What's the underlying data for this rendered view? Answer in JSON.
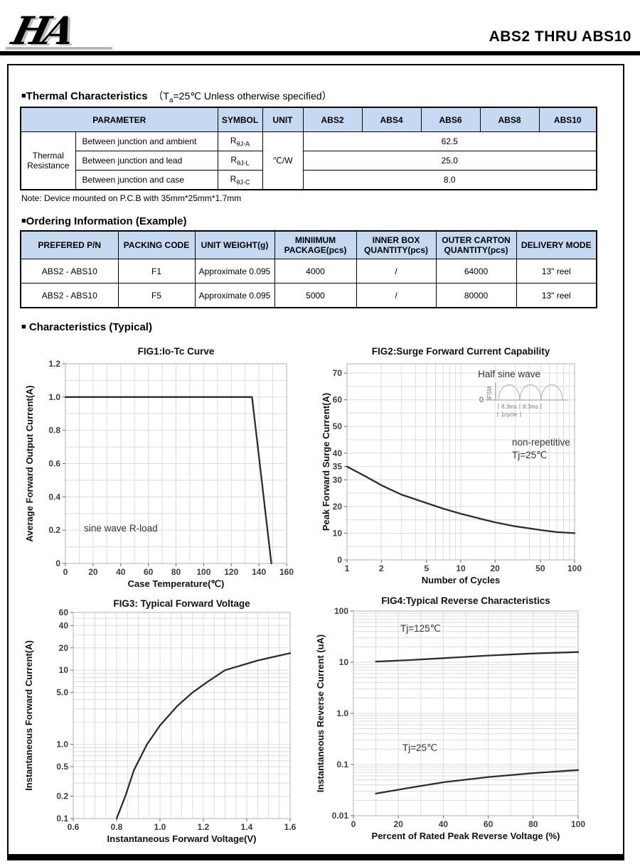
{
  "header": {
    "logo_text": "HA",
    "title": "ABS2 THRU ABS10"
  },
  "thermal": {
    "bullet": "■",
    "heading": "Thermal Characteristics",
    "cond_pre": "（T",
    "cond_sub": "a",
    "cond_post": "=25℃ Unless otherwise specified）",
    "table": {
      "col_headers": [
        "PARAMETER",
        "SYMBOL",
        "UNIT",
        "ABS2",
        "ABS4",
        "ABS6",
        "ABS8",
        "ABS10"
      ],
      "row_group": "Thermal Resistance",
      "unit": "℃/W",
      "rows": [
        {
          "parameter": "Between junction and ambient",
          "symbol_base": "R",
          "symbol_sub": "θJ-A",
          "value": "62.5"
        },
        {
          "parameter": "Between junction and lead",
          "symbol_base": "R",
          "symbol_sub": "θJ-L",
          "value": "25.0"
        },
        {
          "parameter": "Between junction and case",
          "symbol_base": "R",
          "symbol_sub": "θJ-C",
          "value": "8.0"
        }
      ]
    },
    "note": "Note: Device mounted on P.C.B with 35mm*25mm*1.7mm"
  },
  "ordering": {
    "bullet": "■",
    "heading": "Ordering Information (Example)",
    "table": {
      "col_headers": [
        "PREFERED P/N",
        "PACKING CODE",
        "UNIT WEIGHT(g)",
        "MINIIMUM PACKAGE(pcs)",
        "INNER BOX QUANTITY(pcs)",
        "OUTER CARTON QUANTITY(pcs)",
        "DELIVERY MODE"
      ],
      "rows": [
        [
          "ABS2 - ABS10",
          "F1",
          "Approximate 0.095",
          "4000",
          "/",
          "64000",
          "13\" reel"
        ],
        [
          "ABS2 - ABS10",
          "F5",
          "Approximate 0.095",
          "5000",
          "/",
          "80000",
          "13\" reel"
        ]
      ]
    }
  },
  "characteristics": {
    "bullet": "■",
    "heading": " Characteristics (Typical)"
  },
  "colors": {
    "table_header_bg": "#c5d9f1",
    "curve": "#262e38",
    "grid": "#dcdcdc",
    "plot_border": "#bdbdbd"
  },
  "chart_data": [
    {
      "id": "fig1",
      "type": "line",
      "title": "FIG1:Io-Tc Curve",
      "xlabel": "Case Temperature(℃)",
      "ylabel": "Average Forward Output Current(A)",
      "x": {
        "scale": "linear",
        "min": 0,
        "max": 160,
        "grid_step": 10,
        "ticks": [
          {
            "v": 0,
            "l": "0"
          },
          {
            "v": 20,
            "l": "20"
          },
          {
            "v": 40,
            "l": "40"
          },
          {
            "v": 60,
            "l": "60"
          },
          {
            "v": 80,
            "l": "80"
          },
          {
            "v": 100,
            "l": "100"
          },
          {
            "v": 120,
            "l": "120"
          },
          {
            "v": 140,
            "l": "140"
          },
          {
            "v": 160,
            "l": "160"
          }
        ]
      },
      "y": {
        "scale": "linear",
        "min": 0,
        "max": 1.2,
        "grid_step": 0.1,
        "ticks": [
          {
            "v": 0,
            "l": "0"
          },
          {
            "v": 0.2,
            "l": "0.2"
          },
          {
            "v": 0.4,
            "l": "0.4"
          },
          {
            "v": 0.6,
            "l": "0.6"
          },
          {
            "v": 0.8,
            "l": "0.8"
          },
          {
            "v": 1,
            "l": "1.0"
          },
          {
            "v": 1.2,
            "l": "1.2"
          }
        ]
      },
      "series": [
        {
          "name": "",
          "points": [
            [
              0,
              1
            ],
            [
              135,
              1
            ],
            [
              149,
              0
            ]
          ]
        }
      ],
      "annotations": [
        {
          "fx": 0.084,
          "fy": 0.84,
          "text": "sine wave R-load",
          "anchor": "start"
        }
      ]
    },
    {
      "id": "fig2",
      "type": "line",
      "title": "FIG2:Surge Forward Current Capability",
      "xlabel": "Number of Cycles",
      "ylabel": "Peak Forward Surge Current(A)",
      "x": {
        "scale": "log",
        "min": 1,
        "max": 100,
        "ticks": [
          {
            "v": 1,
            "l": "1"
          },
          {
            "v": 2,
            "l": "2"
          },
          {
            "v": 5,
            "l": "5"
          },
          {
            "v": 10,
            "l": "10"
          },
          {
            "v": 20,
            "l": "20"
          },
          {
            "v": 50,
            "l": "50"
          },
          {
            "v": 100,
            "l": "100"
          }
        ]
      },
      "y": {
        "scale": "linear",
        "min": 0,
        "max": 73.5,
        "grid_step": 5,
        "ticks": [
          {
            "v": 0,
            "l": "0"
          },
          {
            "v": 10,
            "l": "10"
          },
          {
            "v": 20,
            "l": "20"
          },
          {
            "v": 30,
            "l": "30"
          },
          {
            "v": 35,
            "l": "35"
          },
          {
            "v": 40,
            "l": "40"
          },
          {
            "v": 50,
            "l": "50"
          },
          {
            "v": 60,
            "l": "60"
          },
          {
            "v": 70,
            "l": "70"
          }
        ]
      },
      "series": [
        {
          "name": "non-repetitive Tj=25℃",
          "points": [
            [
              1,
              35
            ],
            [
              1.5,
              31
            ],
            [
              2,
              28
            ],
            [
              3,
              24.5
            ],
            [
              5,
              21.3
            ],
            [
              7,
              19.2
            ],
            [
              10,
              17.3
            ],
            [
              15,
              15.4
            ],
            [
              20,
              14.1
            ],
            [
              30,
              12.6
            ],
            [
              50,
              11.2
            ],
            [
              70,
              10.4
            ],
            [
              100,
              10
            ]
          ]
        }
      ],
      "annotations": [
        {
          "fx": 0.7125,
          "fy": 0.069,
          "text": "Half sine wave",
          "anchor": "middle",
          "color": "#555"
        },
        {
          "fx": 0.725,
          "fy": 0.417,
          "text": "non-repetitive",
          "anchor": "start"
        },
        {
          "fx": 0.725,
          "fy": 0.482,
          "text": "Tj=25℃",
          "anchor": "start"
        }
      ],
      "inset": {
        "fx": 0.653,
        "fy": 0.185,
        "y_axis_label": "IFSM",
        "zero_label": "0",
        "interval_labels": [
          "8.3ms",
          "8.3ms"
        ],
        "cycle_label": "1cycle"
      }
    },
    {
      "id": "fig3",
      "type": "line",
      "title": "FIG3: Typical Forward Voltage",
      "xlabel": "Instantaneous Forward Voltage(V)",
      "ylabel": "Instantaneous Forward Current(A)",
      "x": {
        "scale": "linear",
        "min": 0.6,
        "max": 1.6,
        "grid_step": 0.05,
        "ticks": [
          {
            "v": 0.6,
            "l": "0.6"
          },
          {
            "v": 0.8,
            "l": "0.8"
          },
          {
            "v": 1,
            "l": "1.0"
          },
          {
            "v": 1.2,
            "l": "1.2"
          },
          {
            "v": 1.4,
            "l": "1.4"
          },
          {
            "v": 1.6,
            "l": "1.6"
          }
        ]
      },
      "y": {
        "scale": "log",
        "min": 0.1,
        "max": 60,
        "ticks": [
          {
            "v": 0.1,
            "l": "0.1"
          },
          {
            "v": 0.2,
            "l": "0.2"
          },
          {
            "v": 0.5,
            "l": "0.5"
          },
          {
            "v": 1,
            "l": "1.0"
          },
          {
            "v": 5,
            "l": "5.0"
          },
          {
            "v": 10,
            "l": "10"
          },
          {
            "v": 20,
            "l": "20"
          },
          {
            "v": 40,
            "l": "40"
          },
          {
            "v": 60,
            "l": "60"
          }
        ]
      },
      "series": [
        {
          "name": "",
          "points": [
            [
              0.8,
              0.1
            ],
            [
              0.84,
              0.2
            ],
            [
              0.88,
              0.45
            ],
            [
              0.94,
              1.0
            ],
            [
              1.0,
              1.8
            ],
            [
              1.08,
              3.3
            ],
            [
              1.15,
              5.0
            ],
            [
              1.22,
              7.0
            ],
            [
              1.3,
              10
            ],
            [
              1.45,
              13.5
            ],
            [
              1.6,
              17
            ]
          ]
        }
      ],
      "annotations": []
    },
    {
      "id": "fig4",
      "type": "line",
      "title": "FIG4:Typical Reverse Characteristics",
      "xlabel": "Percent of Rated Peak Reverse Voltage  (%)",
      "ylabel": "Instantaneous Reverse Current (uA)",
      "x": {
        "scale": "linear",
        "min": 0,
        "max": 100,
        "grid_step": 10,
        "ticks": [
          {
            "v": 0,
            "l": "0"
          },
          {
            "v": 20,
            "l": "20"
          },
          {
            "v": 40,
            "l": "40"
          },
          {
            "v": 60,
            "l": "60"
          },
          {
            "v": 80,
            "l": "80"
          },
          {
            "v": 100,
            "l": "100"
          }
        ]
      },
      "y": {
        "scale": "log",
        "min": 0.01,
        "max": 100,
        "ticks": [
          {
            "v": 0.01,
            "l": "0.01"
          },
          {
            "v": 0.1,
            "l": "0.1"
          },
          {
            "v": 1,
            "l": "1.0"
          },
          {
            "v": 10,
            "l": "10"
          },
          {
            "v": 100,
            "l": "100"
          }
        ]
      },
      "series": [
        {
          "name": "Tj=125℃",
          "points": [
            [
              10,
              10.3
            ],
            [
              25,
              11
            ],
            [
              40,
              12
            ],
            [
              60,
              13.5
            ],
            [
              80,
              14.8
            ],
            [
              100,
              15.8
            ]
          ]
        },
        {
          "name": "Tj=25℃",
          "points": [
            [
              10,
              0.027
            ],
            [
              25,
              0.035
            ],
            [
              40,
              0.045
            ],
            [
              60,
              0.057
            ],
            [
              80,
              0.068
            ],
            [
              100,
              0.078
            ]
          ]
        }
      ],
      "annotations": [
        {
          "fx": 0.209,
          "fy": 0.1,
          "text": "Tj=125℃",
          "bold": true
        },
        {
          "fx": 0.218,
          "fy": 0.684,
          "text": "Tj=25℃",
          "bold": true
        }
      ]
    }
  ]
}
